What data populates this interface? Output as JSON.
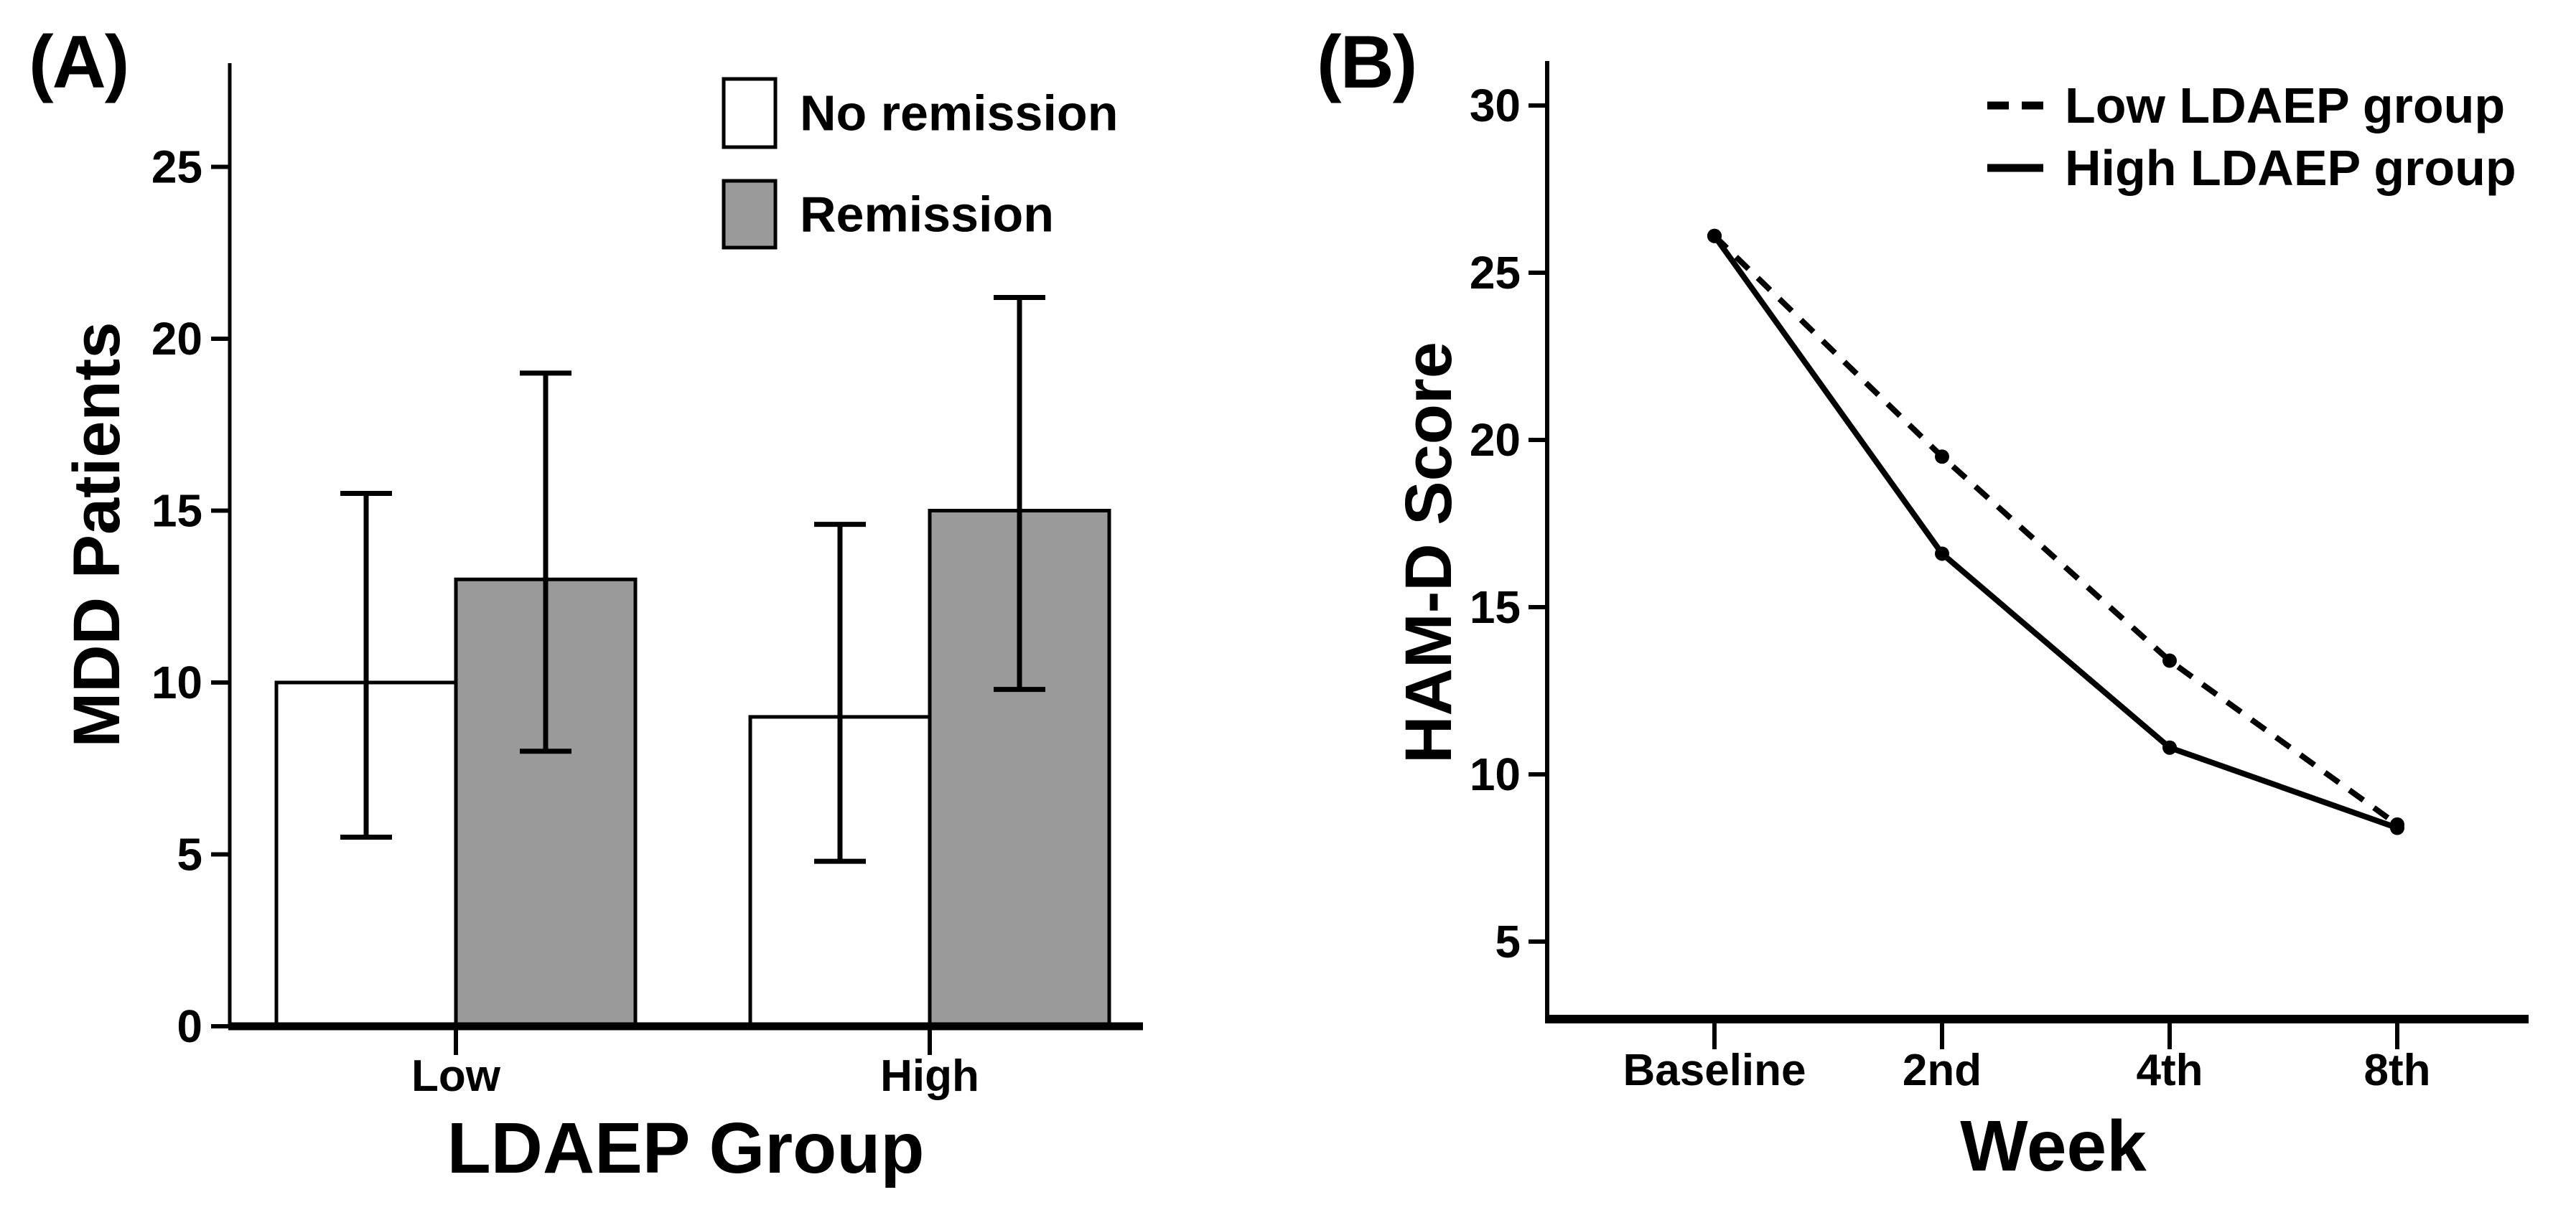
{
  "figure": {
    "background": "#ffffff",
    "colors": {
      "axis": "#000000",
      "text": "#000000",
      "bar_outline": "#000000",
      "bar_fill_no_remission": "#ffffff",
      "bar_fill_remission": "#9a9a9a",
      "line_color": "#000000"
    }
  },
  "chart_data": [
    {
      "panel_label": "(A)",
      "type": "bar",
      "title": "",
      "xlabel": "LDAEP Group",
      "ylabel": "MDD Patients",
      "categories": [
        "Low",
        "High"
      ],
      "yticks": [
        0,
        5,
        10,
        15,
        20,
        25
      ],
      "ylim": [
        0,
        28
      ],
      "grid": false,
      "legend_position": "top-right",
      "series": [
        {
          "name": "No remission",
          "fill": "#ffffff",
          "values": [
            10,
            9
          ],
          "error_low": [
            5.5,
            4.8
          ],
          "error_high": [
            15.5,
            14.6
          ]
        },
        {
          "name": "Remission",
          "fill": "#9a9a9a",
          "values": [
            13,
            15
          ],
          "error_low": [
            8.0,
            9.8
          ],
          "error_high": [
            19.0,
            21.2
          ]
        }
      ]
    },
    {
      "panel_label": "(B)",
      "type": "line",
      "title": "",
      "xlabel": "Week",
      "ylabel": "HAM-D Score",
      "categories": [
        "Baseline",
        "2nd",
        "4th",
        "8th"
      ],
      "yticks": [
        5,
        10,
        15,
        20,
        25,
        30
      ],
      "ylim": [
        2.5,
        31
      ],
      "grid": false,
      "legend_position": "top-right",
      "series": [
        {
          "name": "Low LDAEP group",
          "style": "dashed",
          "values": [
            26.1,
            19.5,
            13.4,
            8.5
          ]
        },
        {
          "name": "High LDAEP group",
          "style": "solid",
          "values": [
            26.1,
            16.6,
            10.8,
            8.4
          ]
        }
      ]
    }
  ]
}
